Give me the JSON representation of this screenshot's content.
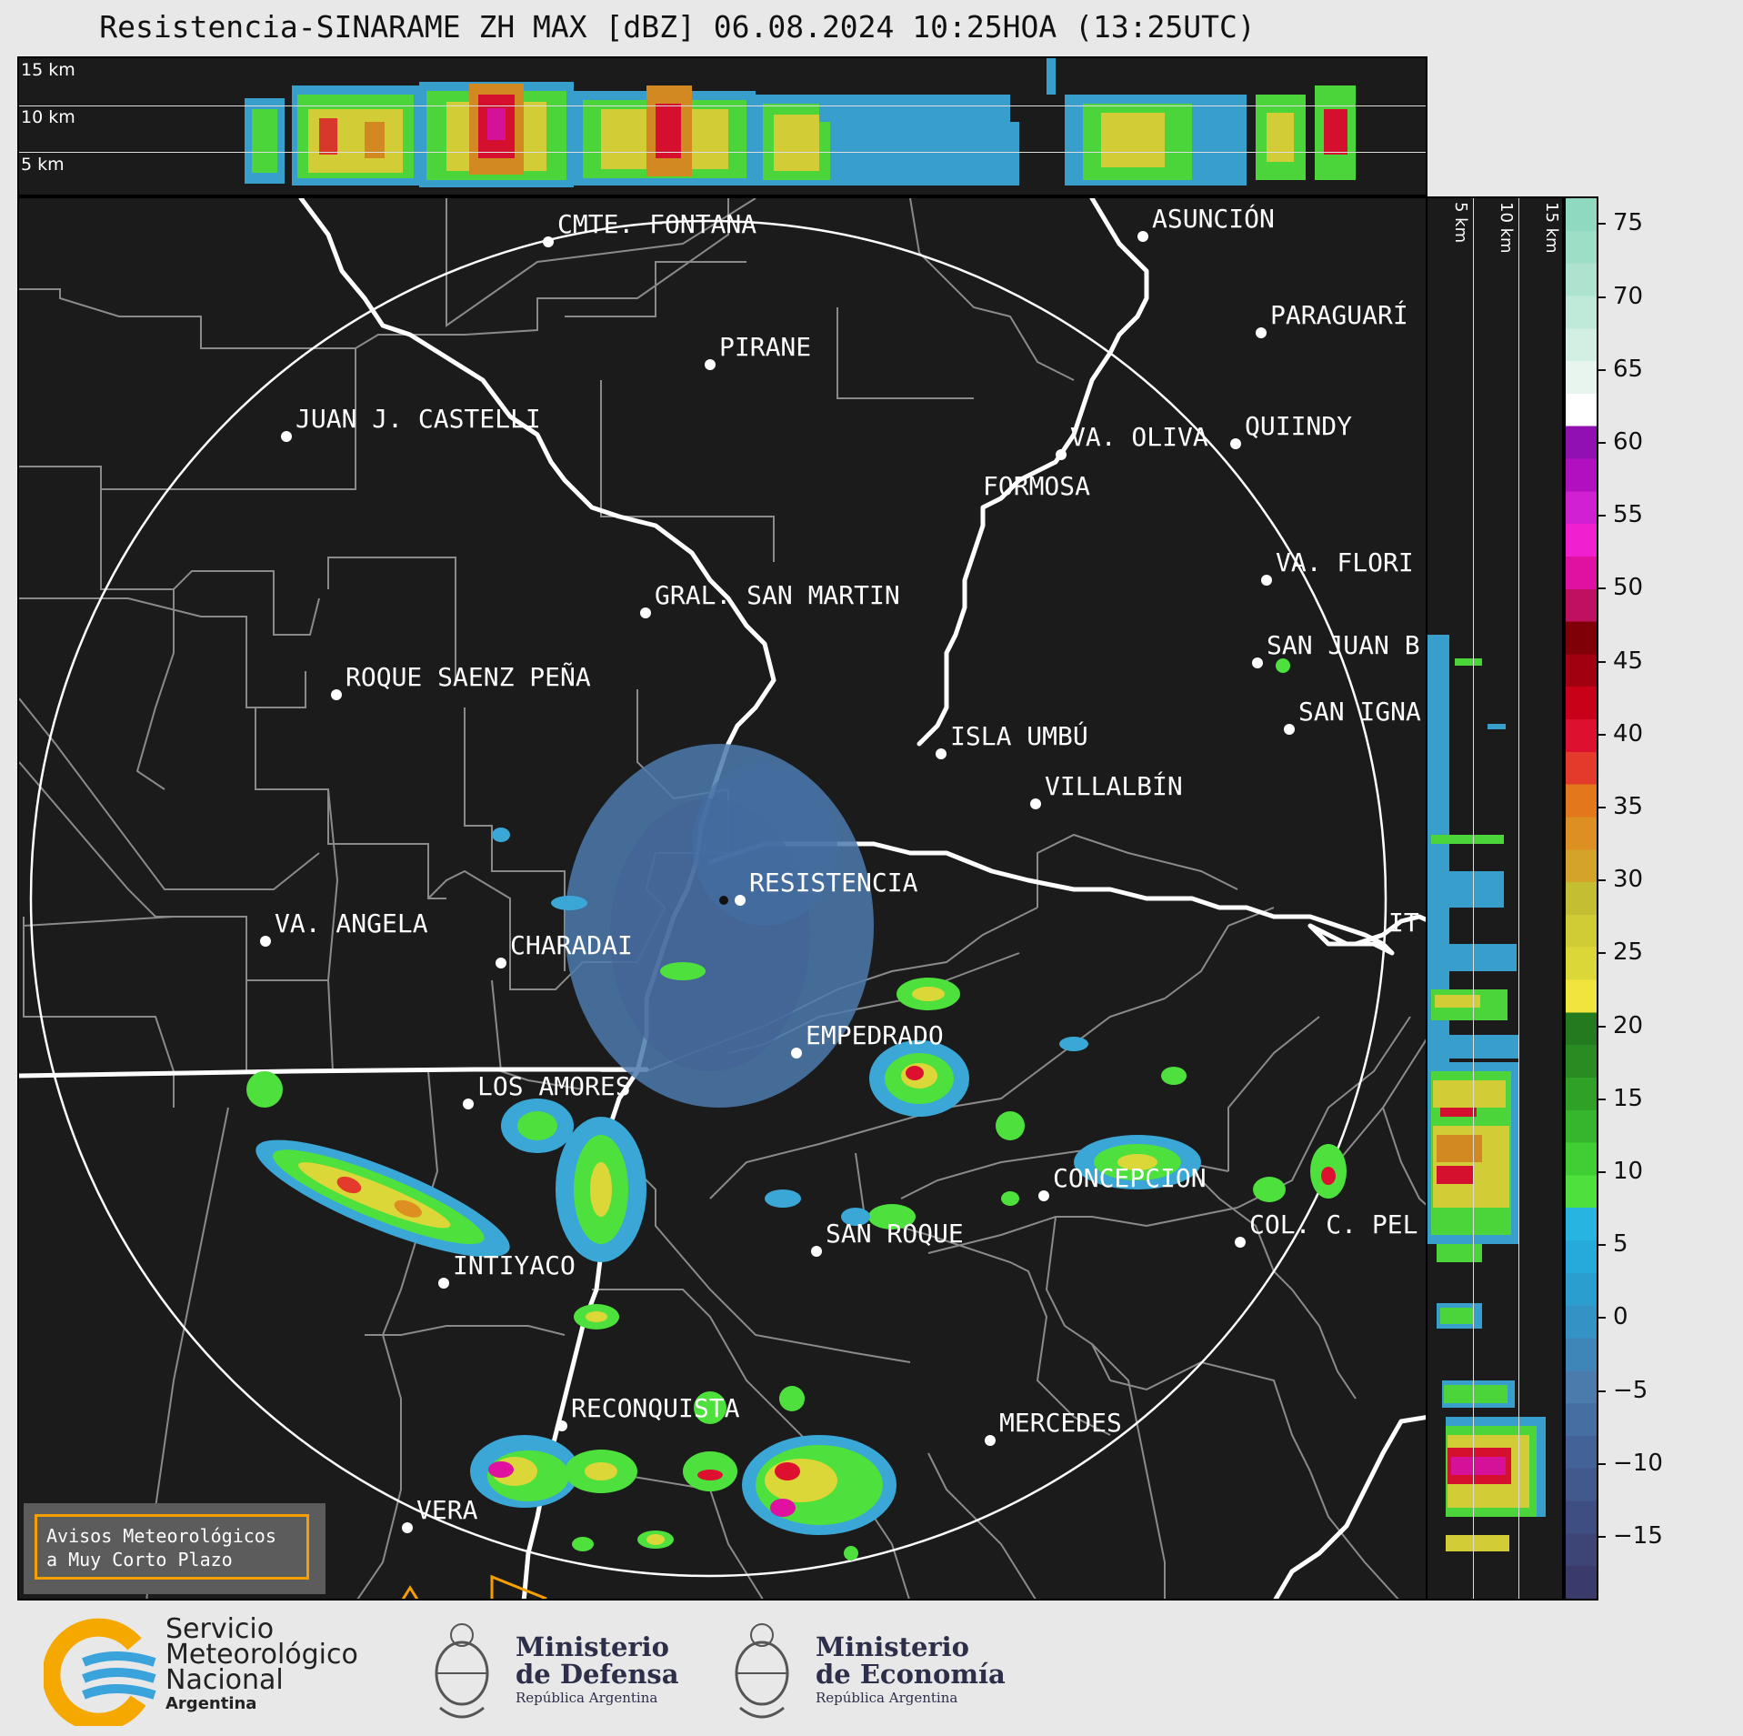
{
  "title": "Resistencia-SINARAME ZH MAX [dBZ] 06.08.2024 10:25HOA (13:25UTC)",
  "top_strip": {
    "heights": [
      "15 km",
      "10 km",
      "5 km"
    ]
  },
  "side_strip": {
    "heights": [
      "5 km",
      "10 km",
      "15 km"
    ]
  },
  "colorbar": {
    "ticks": [
      "75",
      "70",
      "65",
      "60",
      "55",
      "50",
      "45",
      "40",
      "35",
      "30",
      "25",
      "20",
      "15",
      "10",
      "5",
      "0",
      "−5",
      "−10",
      "−15"
    ],
    "colors": [
      "#3b3b6b",
      "#3d4476",
      "#3f4e82",
      "#41598d",
      "#436398",
      "#456ea3",
      "#4b7aad",
      "#3f86b8",
      "#3592c4",
      "#2b9ed0",
      "#26aadb",
      "#28b4e0",
      "#4ee03c",
      "#3fcf34",
      "#36b62c",
      "#2ea126",
      "#298c22",
      "#247a1e",
      "#f1e43c",
      "#dcd738",
      "#cfcc35",
      "#c4be32",
      "#d4a42a",
      "#dd8f22",
      "#e2781b",
      "#e33a2c",
      "#de1030",
      "#c80018",
      "#a00010",
      "#800008",
      "#c01060",
      "#e010a0",
      "#f020d0",
      "#d020d0",
      "#b010c0",
      "#9010b0",
      "#ffffff",
      "#e8f5ef",
      "#d2efe3",
      "#bfe9d8",
      "#aee3cf",
      "#9ddec7",
      "#8ed9c0"
    ]
  },
  "cities": [
    {
      "name": "CMTE. FONTANA"
    },
    {
      "name": "ASUNCIÓN"
    },
    {
      "name": "PARAGUARÍ"
    },
    {
      "name": "PIRANE"
    },
    {
      "name": "JUAN J. CASTELLI"
    },
    {
      "name": "VA. OLIVA"
    },
    {
      "name": "QUIINDY"
    },
    {
      "name": "FORMOSA"
    },
    {
      "name": "VA. FLORI"
    },
    {
      "name": "GRAL. SAN MARTIN"
    },
    {
      "name": "SAN JUAN B"
    },
    {
      "name": "ROQUE SAENZ PEÑA"
    },
    {
      "name": "SAN IGNA"
    },
    {
      "name": "ISLA UMBÚ"
    },
    {
      "name": "VILLALBÍN"
    },
    {
      "name": "RESISTENCIA"
    },
    {
      "name": "VA. ANGELA"
    },
    {
      "name": "CHARADAI"
    },
    {
      "name": "IT"
    },
    {
      "name": "EMPEDRADO"
    },
    {
      "name": "LOS AMORES"
    },
    {
      "name": "CONCEPCION"
    },
    {
      "name": "SAN ROQUE"
    },
    {
      "name": "COL. C. PEL"
    },
    {
      "name": "INTIYACO"
    },
    {
      "name": "RECONQUISTA"
    },
    {
      "name": "MERCEDES"
    },
    {
      "name": "VERA"
    }
  ],
  "avisos": {
    "line1": "Avisos Meteorológicos",
    "line2": "a Muy Corto Plazo"
  },
  "footer": {
    "smn": {
      "line1": "Servicio",
      "line2": "Meteorológico",
      "line3": "Nacional",
      "line4": "Argentina"
    },
    "defensa": {
      "line1": "Ministerio",
      "line2": "de Defensa",
      "line3": "República Argentina"
    },
    "economia": {
      "line1": "Ministerio",
      "line2": "de Economía",
      "line3": "República Argentina"
    }
  }
}
